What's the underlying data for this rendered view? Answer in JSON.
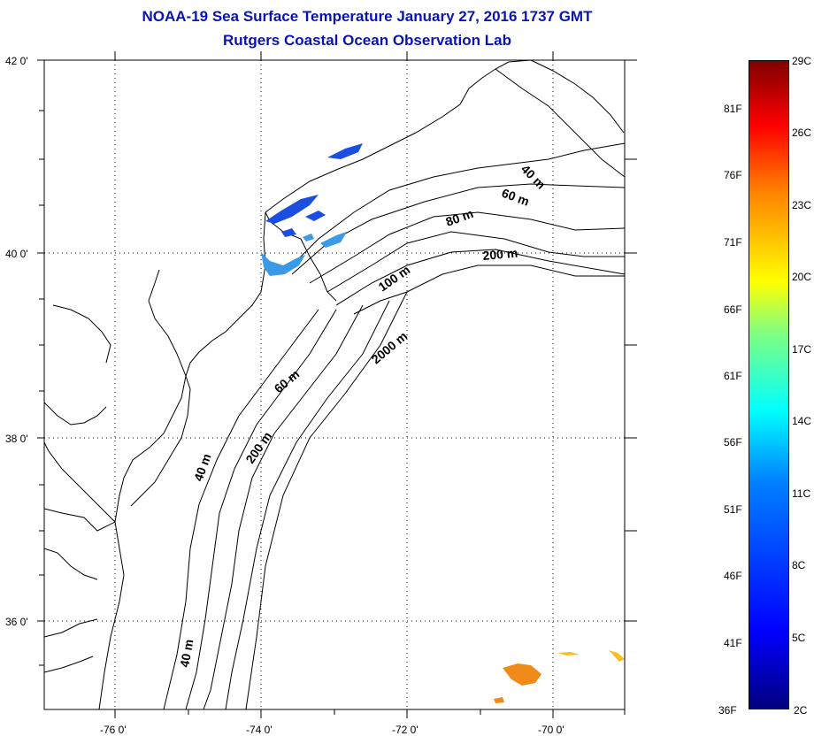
{
  "title": {
    "line1": "NOAA-19 Sea Surface Temperature January 27, 2016 1737 GMT",
    "line2": "Rutgers Coastal Ocean Observation Lab"
  },
  "axes": {
    "lat_labels": [
      "42 0'",
      "40 0'",
      "38 0'",
      "36 0'"
    ],
    "lon_labels": [
      "-76 0'",
      "-74 0'",
      "-72 0'",
      "-70 0'"
    ]
  },
  "contour_labels": [
    "40 m",
    "60 m",
    "80 m",
    "200 m",
    "100 m",
    "2000 m",
    "60 m",
    "200 m",
    "40 m",
    "40 m"
  ],
  "colorbar": {
    "celsius_labels": [
      "29C",
      "26C",
      "23C",
      "20C",
      "17C",
      "14C",
      "11C",
      "8C",
      "5C",
      "2C"
    ],
    "fahrenheit_labels": [
      "81F",
      "76F",
      "71F",
      "66F",
      "61F",
      "56F",
      "51F",
      "46F",
      "41F",
      "36F"
    ]
  },
  "colors": {
    "title": "#0a14b4",
    "land_line": "#000000",
    "cold_patch": "#1a4ee0",
    "cool_patch": "#3a9ae8",
    "warm_patch": "#f08a18"
  }
}
